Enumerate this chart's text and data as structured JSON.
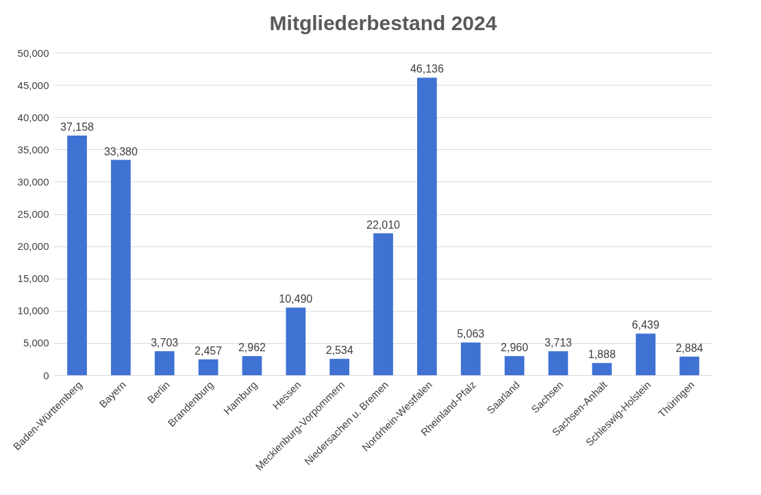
{
  "chart_data": {
    "type": "bar",
    "title": "Mitgliederbestand 2024",
    "categories": [
      "Baden-Württemberg",
      "Bayern",
      "Berlin",
      "Brandenburg",
      "Hamburg",
      "Hessen",
      "Mecklenburg-Vorpommern",
      "Niedersachen u. Bremen",
      "Nordrhein-Westfalen",
      "Rheinland-Pfalz",
      "Saarland",
      "Sachsen",
      "Sachsen-Anhalt",
      "Schleswig-Holstein",
      "Thüringen"
    ],
    "values": [
      37158,
      33380,
      3703,
      2457,
      2962,
      10490,
      2534,
      22010,
      46136,
      5063,
      2960,
      3713,
      1888,
      6439,
      2884
    ],
    "value_labels": [
      "37,158",
      "33,380",
      "3,703",
      "2,457",
      "2,962",
      "10,490",
      "2,534",
      "22,010",
      "46,136",
      "5,063",
      "2,960",
      "3,713",
      "1,888",
      "6,439",
      "2,884"
    ],
    "color": "#4072d4",
    "ylim": [
      0,
      50000
    ],
    "yticks": [
      0,
      {
        "value": 5000,
        "label": "5,000"
      },
      {
        "value": 10000,
        "label": "10,000"
      },
      {
        "value": 15000,
        "label": "15,000"
      },
      {
        "value": 20000,
        "label": "20,000"
      },
      {
        "value": 25000,
        "label": "25,000"
      },
      {
        "value": 30000,
        "label": "30,000"
      },
      {
        "value": 35000,
        "label": "35,000"
      },
      {
        "value": 40000,
        "label": "40,000"
      },
      {
        "value": 45000,
        "label": "45,000"
      },
      {
        "value": 50000,
        "label": "50,000"
      }
    ],
    "grid": "y"
  }
}
